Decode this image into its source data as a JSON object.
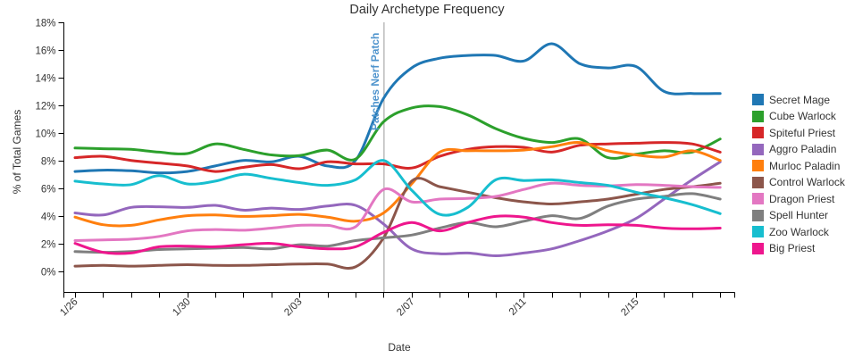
{
  "page_title": "Daily Archetype Frequency",
  "chart_data": {
    "type": "line",
    "title": "Daily Archetype Frequency",
    "xlabel": "Date",
    "ylabel": "% of Total Games",
    "ylim": [
      0,
      18
    ],
    "y_tick_labels": [
      "0%",
      "2%",
      "4%",
      "6%",
      "8%",
      "10%",
      "12%",
      "14%",
      "16%",
      "18%"
    ],
    "x_label_every": 4,
    "x_labeled_ticks": [
      "1/26",
      "1/30",
      "2/03",
      "2/07",
      "2/11",
      "2/15"
    ],
    "grid": false,
    "legend_position": "right",
    "dates": [
      "1/26",
      "1/27",
      "1/28",
      "1/29",
      "1/30",
      "1/31",
      "2/01",
      "2/02",
      "2/03",
      "2/04",
      "2/05",
      "2/06",
      "2/07",
      "2/08",
      "2/09",
      "2/10",
      "2/11",
      "2/12",
      "2/13",
      "2/14",
      "2/15",
      "2/16",
      "2/17",
      "2/18"
    ],
    "annotation": {
      "label": "Patches Nerf Patch",
      "date": "2/06",
      "text_color": "#4f94cd",
      "line_color": "#9a9a9a"
    },
    "series": [
      {
        "name": "Secret Mage",
        "color": "#1f77b4",
        "values": [
          7.2,
          7.3,
          7.25,
          7.1,
          7.2,
          7.6,
          8.0,
          7.9,
          8.3,
          7.6,
          8.0,
          12.5,
          14.7,
          15.4,
          15.6,
          15.6,
          15.2,
          16.45,
          15.0,
          14.7,
          14.8,
          13.0,
          12.85,
          12.85
        ]
      },
      {
        "name": "Cube Warlock",
        "color": "#2ca02c",
        "values": [
          8.9,
          8.85,
          8.8,
          8.6,
          8.5,
          9.2,
          8.8,
          8.4,
          8.35,
          8.75,
          8.1,
          10.8,
          11.8,
          11.9,
          11.3,
          10.3,
          9.6,
          9.3,
          9.55,
          8.2,
          8.45,
          8.7,
          8.6,
          9.55
        ]
      },
      {
        "name": "Spiteful Priest",
        "color": "#d62728",
        "values": [
          8.2,
          8.3,
          8.0,
          7.8,
          7.6,
          7.2,
          7.5,
          7.7,
          7.4,
          7.9,
          7.75,
          7.75,
          7.45,
          8.3,
          8.8,
          9.0,
          8.95,
          8.6,
          9.1,
          9.2,
          9.25,
          9.3,
          9.2,
          8.6
        ]
      },
      {
        "name": "Aggro Paladin",
        "color": "#9467bd",
        "values": [
          4.2,
          4.05,
          4.6,
          4.65,
          4.6,
          4.75,
          4.4,
          4.55,
          4.45,
          4.7,
          4.75,
          3.4,
          1.6,
          1.25,
          1.3,
          1.1,
          1.3,
          1.6,
          2.2,
          2.9,
          3.8,
          5.2,
          6.6,
          7.9
        ]
      },
      {
        "name": "Murloc Paladin",
        "color": "#ff7f0e",
        "values": [
          3.9,
          3.35,
          3.3,
          3.7,
          4.0,
          4.05,
          3.95,
          4.0,
          4.1,
          3.9,
          3.6,
          4.2,
          6.3,
          8.6,
          8.7,
          8.7,
          8.75,
          9.0,
          9.3,
          8.7,
          8.4,
          8.25,
          8.7,
          8.0
        ]
      },
      {
        "name": "Control Warlock",
        "color": "#8c564b",
        "values": [
          0.35,
          0.4,
          0.35,
          0.4,
          0.45,
          0.4,
          0.4,
          0.45,
          0.5,
          0.5,
          0.3,
          2.4,
          6.5,
          6.1,
          5.7,
          5.3,
          5.0,
          4.85,
          5.0,
          5.2,
          5.55,
          5.9,
          6.1,
          6.35
        ]
      },
      {
        "name": "Dragon Priest",
        "color": "#e377c2",
        "values": [
          2.2,
          2.25,
          2.3,
          2.5,
          2.9,
          3.0,
          2.95,
          3.1,
          3.3,
          3.3,
          3.2,
          5.9,
          5.0,
          5.2,
          5.25,
          5.4,
          5.9,
          6.35,
          6.2,
          6.15,
          6.25,
          6.2,
          6.1,
          6.05
        ]
      },
      {
        "name": "Spell Hunter",
        "color": "#7f7f7f",
        "values": [
          1.4,
          1.35,
          1.4,
          1.55,
          1.6,
          1.65,
          1.7,
          1.6,
          1.9,
          1.8,
          2.2,
          2.4,
          2.6,
          3.1,
          3.5,
          3.2,
          3.6,
          4.0,
          3.8,
          4.7,
          5.2,
          5.4,
          5.6,
          5.2
        ]
      },
      {
        "name": "Zoo Warlock",
        "color": "#17becf",
        "values": [
          6.5,
          6.3,
          6.25,
          6.9,
          6.3,
          6.5,
          7.0,
          6.7,
          6.4,
          6.2,
          6.6,
          8.0,
          5.85,
          4.1,
          4.6,
          6.6,
          6.55,
          6.6,
          6.4,
          6.2,
          5.7,
          5.3,
          4.8,
          4.15
        ]
      },
      {
        "name": "Big Priest",
        "color": "#ee168d",
        "values": [
          2.0,
          1.35,
          1.3,
          1.75,
          1.8,
          1.75,
          1.9,
          2.0,
          1.75,
          1.6,
          1.75,
          2.8,
          3.5,
          2.9,
          3.5,
          3.95,
          3.9,
          3.5,
          3.3,
          3.35,
          3.3,
          3.1,
          3.05,
          3.1
        ]
      }
    ]
  }
}
